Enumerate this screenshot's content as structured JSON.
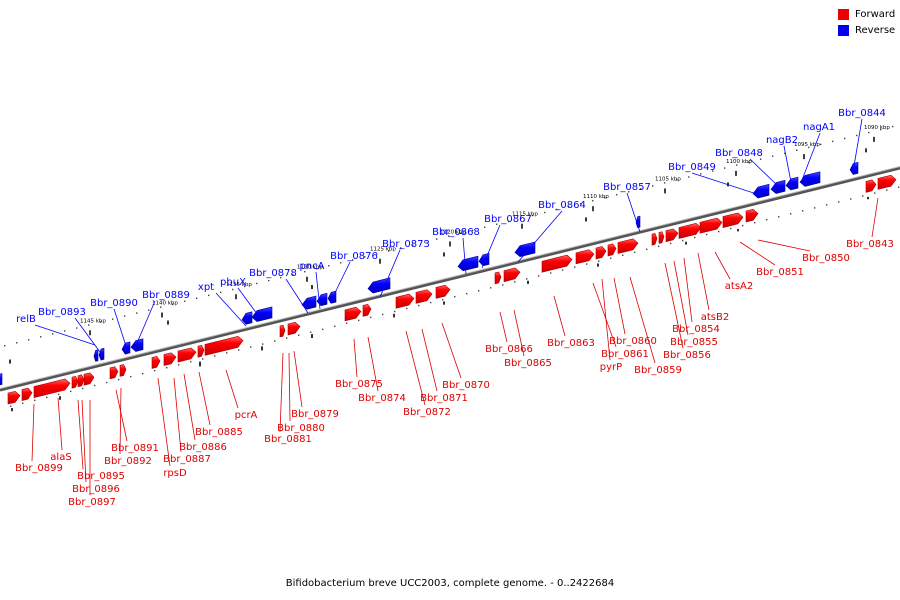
{
  "legend": {
    "forward_label": "Forward",
    "reverse_label": "Reverse",
    "forward_color": "#ff0000",
    "reverse_color": "#0000ff"
  },
  "caption": "Bifidobacterium breve UCC2003, complete genome. - 0..2422684",
  "kbp_ticks": [
    "1145 kbp",
    "1140 kbp",
    "1135 kbp",
    "1130 kbp",
    "1125 kbp",
    "1120 kbp",
    "1115 kbp",
    "1110 kbp",
    "1105 kbp",
    "1100 kbp",
    "1095 kbp",
    "1090 kbp"
  ],
  "reverse_genes": [
    {
      "label": "relB",
      "icon": "gene-arrow-left"
    },
    {
      "label": "Bbr_0893",
      "icon": "gene-arrow-left"
    },
    {
      "label": "Bbr_0890",
      "icon": "gene-arrow-left"
    },
    {
      "label": "Bbr_0889",
      "icon": "gene-arrow-left"
    },
    {
      "label": "xpt",
      "icon": "gene-arrow-left"
    },
    {
      "label": "pbuX",
      "icon": "gene-arrow-left"
    },
    {
      "label": "Bbr_0878",
      "icon": "gene-arrow-left"
    },
    {
      "label": "pncA",
      "icon": "gene-arrow-left"
    },
    {
      "label": "Bbr_0876",
      "icon": "gene-arrow-left"
    },
    {
      "label": "Bbr_0873",
      "icon": "gene-arrow-left"
    },
    {
      "label": "Bbr_0868",
      "icon": "gene-arrow-left"
    },
    {
      "label": "Bbr_0867",
      "icon": "gene-arrow-left"
    },
    {
      "label": "Bbr_0864",
      "icon": "gene-arrow-left"
    },
    {
      "label": "Bbr_0857",
      "icon": "gene-arrow-left"
    },
    {
      "label": "Bbr_0849",
      "icon": "gene-arrow-left"
    },
    {
      "label": "Bbr_0848",
      "icon": "gene-arrow-left"
    },
    {
      "label": "nagB2",
      "icon": "gene-arrow-left"
    },
    {
      "label": "nagA1",
      "icon": "gene-arrow-left"
    },
    {
      "label": "Bbr_0844",
      "icon": "gene-arrow-left"
    }
  ],
  "forward_genes": [
    {
      "label": "Bbr_0899",
      "icon": "gene-arrow-right"
    },
    {
      "label": "alaS",
      "icon": "gene-arrow-right"
    },
    {
      "label": "Bbr_0895",
      "icon": "gene-arrow-right"
    },
    {
      "label": "Bbr_0896",
      "icon": "gene-arrow-right"
    },
    {
      "label": "Bbr_0897",
      "icon": "gene-arrow-right"
    },
    {
      "label": "Bbr_0891",
      "icon": "gene-arrow-right"
    },
    {
      "label": "Bbr_0892",
      "icon": "gene-arrow-right"
    },
    {
      "label": "rpsD",
      "icon": "gene-arrow-right"
    },
    {
      "label": "Bbr_0887",
      "icon": "gene-arrow-right"
    },
    {
      "label": "Bbr_0886",
      "icon": "gene-arrow-right"
    },
    {
      "label": "Bbr_0885",
      "icon": "gene-arrow-right"
    },
    {
      "label": "pcrA",
      "icon": "gene-arrow-right"
    },
    {
      "label": "Bbr_0881",
      "icon": "gene-arrow-right"
    },
    {
      "label": "Bbr_0880",
      "icon": "gene-arrow-right"
    },
    {
      "label": "Bbr_0879",
      "icon": "gene-arrow-right"
    },
    {
      "label": "Bbr_0875",
      "icon": "gene-arrow-right"
    },
    {
      "label": "Bbr_0874",
      "icon": "gene-arrow-right"
    },
    {
      "label": "Bbr_0872",
      "icon": "gene-arrow-right"
    },
    {
      "label": "Bbr_0871",
      "icon": "gene-arrow-right"
    },
    {
      "label": "Bbr_0870",
      "icon": "gene-arrow-right"
    },
    {
      "label": "Bbr_0866",
      "icon": "gene-arrow-right"
    },
    {
      "label": "Bbr_0865",
      "icon": "gene-arrow-right"
    },
    {
      "label": "Bbr_0863",
      "icon": "gene-arrow-right"
    },
    {
      "label": "Bbr_0861",
      "icon": "gene-arrow-right"
    },
    {
      "label": "pyrP",
      "icon": "gene-arrow-right"
    },
    {
      "label": "Bbr_0860",
      "icon": "gene-arrow-right"
    },
    {
      "label": "Bbr_0859",
      "icon": "gene-arrow-right"
    },
    {
      "label": "Bbr_0856",
      "icon": "gene-arrow-right"
    },
    {
      "label": "Bbr_0855",
      "icon": "gene-arrow-right"
    },
    {
      "label": "Bbr_0854",
      "icon": "gene-arrow-right"
    },
    {
      "label": "atsB2",
      "icon": "gene-arrow-right"
    },
    {
      "label": "atsA2",
      "icon": "gene-arrow-right"
    },
    {
      "label": "Bbr_0851",
      "icon": "gene-arrow-right"
    },
    {
      "label": "Bbr_0850",
      "icon": "gene-arrow-right"
    },
    {
      "label": "Bbr_0843",
      "icon": "gene-arrow-right"
    }
  ]
}
